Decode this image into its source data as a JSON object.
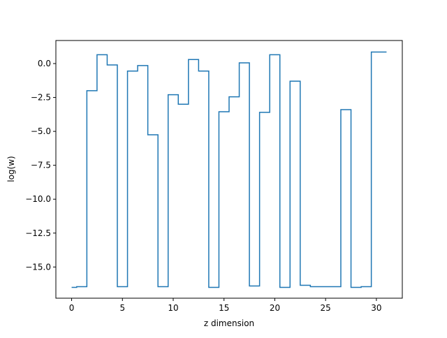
{
  "chart_data": {
    "type": "line",
    "drawstyle": "steps-mid",
    "title": "",
    "xlabel": "z dimension",
    "ylabel": "log(w)",
    "xlim": [
      -1.55,
      32.55
    ],
    "ylim": [
      -17.3,
      1.7
    ],
    "xticks": [
      0,
      5,
      10,
      15,
      20,
      25,
      30
    ],
    "xtick_labels": [
      "0",
      "5",
      "10",
      "15",
      "20",
      "25",
      "30"
    ],
    "yticks": [
      0.0,
      -2.5,
      -5.0,
      -7.5,
      -10.0,
      -12.5,
      -15.0
    ],
    "ytick_labels": [
      "0.0",
      "−2.5",
      "−5.0",
      "−7.5",
      "−10.0",
      "−12.5",
      "−15.0"
    ],
    "grid": false,
    "legend": "none",
    "colors": {
      "line": "#1f77b4"
    },
    "series": [
      {
        "x": [
          0,
          1,
          2,
          3,
          4,
          5,
          6,
          7,
          8,
          9,
          10,
          11,
          12,
          13,
          14,
          15,
          16,
          17,
          18,
          19,
          20,
          21,
          22,
          23,
          24,
          25,
          26,
          27,
          28,
          29,
          30,
          31
        ],
        "y": [
          -16.5,
          -16.45,
          -2.0,
          0.65,
          -0.1,
          -16.45,
          -0.55,
          -0.15,
          -5.25,
          -16.45,
          -2.3,
          -3.0,
          0.3,
          -0.55,
          -16.5,
          -3.55,
          -2.45,
          0.05,
          -16.4,
          -3.6,
          0.65,
          -16.5,
          -1.3,
          -16.35,
          -16.45,
          -16.45,
          -16.45,
          -3.4,
          -16.5,
          -16.45,
          0.85,
          0.85
        ]
      }
    ]
  }
}
